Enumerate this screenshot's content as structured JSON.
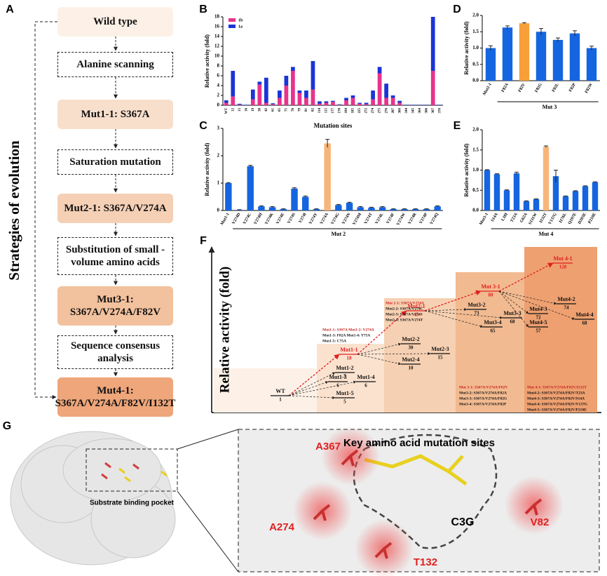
{
  "panel_labels": [
    "A",
    "B",
    "C",
    "D",
    "E",
    "F",
    "G"
  ],
  "panel_a": {
    "axis_label": "Strategies of evolution",
    "steps": [
      "Wild type",
      "Alanine scanning",
      "Mut1-1: S367A",
      "Saturation mutation",
      "Mut2-1: S367A/V274A",
      "Substitution of small - volume amino acids",
      "Mut3-1: S367A/V274A/F82V",
      "Sequence consensus analysis",
      "Mut4-1: S367A/V274A/F82V/I132T"
    ]
  },
  "chart_data": [
    {
      "type": "bar",
      "stacked": true,
      "ylabel": "Relative activity (fold)",
      "xlabel": "Mutation sites",
      "categories": [
        "WT",
        "12",
        "13",
        "16",
        "19",
        "38",
        "42",
        "61",
        "65",
        "75",
        "76",
        "79",
        "81",
        "82",
        "114",
        "115",
        "177",
        "178",
        "184",
        "185",
        "225",
        "272",
        "274",
        "275",
        "276",
        "287",
        "300",
        "344",
        "345",
        "364",
        "366",
        "367",
        "370"
      ],
      "series": [
        {
          "name": "1b",
          "color": "#e8338c",
          "values": [
            0.5,
            1.8,
            0.1,
            0,
            1.2,
            4.2,
            0.5,
            0.2,
            1.5,
            4,
            7,
            2.5,
            1.5,
            3.2,
            0.3,
            0.5,
            0.7,
            0.1,
            1,
            1.5,
            0.3,
            0.2,
            1.2,
            6.5,
            1.5,
            1.5,
            0.5,
            0,
            0,
            0,
            0,
            7,
            0
          ]
        },
        {
          "name": "1a",
          "color": "#1a35d6",
          "values": [
            0.5,
            5.2,
            0.2,
            0.1,
            2,
            0.6,
            5.1,
            0.2,
            1.5,
            2,
            0.8,
            0.5,
            1.5,
            5.8,
            0.5,
            0.3,
            0.2,
            0.1,
            0.5,
            0.5,
            0.2,
            0.3,
            1.8,
            1.3,
            2.9,
            0.5,
            0.4,
            0.1,
            0.1,
            0.1,
            0.1,
            11,
            0.1
          ]
        }
      ],
      "ylim": [
        0,
        18
      ],
      "yticks": [
        0,
        2,
        4,
        6,
        8,
        10,
        12,
        14,
        16,
        18
      ],
      "legend": "top-left"
    },
    {
      "type": "bar",
      "ylabel": "Relative activity (fold)",
      "group_label": "Mut 2",
      "categories": [
        "Mut1-1",
        "V274D",
        "V274C",
        "V274H",
        "V274K",
        "V274E",
        "V274S",
        "V274I",
        "V274Y",
        "V274A",
        "V274G",
        "V274N",
        "V274M",
        "V274T",
        "V274L",
        "V274F",
        "V274W",
        "V274R",
        "V274P",
        "V274Q"
      ],
      "values": [
        1.0,
        0.02,
        1.62,
        0.15,
        0.12,
        0.05,
        0.8,
        0.5,
        0.05,
        2.45,
        0.2,
        0.28,
        0.12,
        0.1,
        0.12,
        0.05,
        0.05,
        0.05,
        0.05,
        0.15
      ],
      "errors": [
        0.02,
        0.01,
        0.03,
        0.02,
        0.02,
        0.01,
        0.03,
        0.03,
        0.01,
        0.15,
        0.02,
        0.02,
        0.02,
        0.02,
        0.02,
        0.01,
        0.01,
        0.01,
        0.01,
        0.02
      ],
      "colors": [
        "#1565e0",
        "#1565e0",
        "#1565e0",
        "#1565e0",
        "#1565e0",
        "#1565e0",
        "#1565e0",
        "#1565e0",
        "#1565e0",
        "#f7b57a",
        "#1565e0",
        "#1565e0",
        "#1565e0",
        "#1565e0",
        "#1565e0",
        "#1565e0",
        "#1565e0",
        "#1565e0",
        "#1565e0",
        "#1565e0"
      ],
      "ylim": [
        0,
        3
      ],
      "yticks": [
        0,
        1,
        2,
        3
      ]
    },
    {
      "type": "bar",
      "ylabel": "Relative activity (fold)",
      "group_label": "Mut 3",
      "categories": [
        "Mut2-1",
        "F82A",
        "F82V",
        "F82G",
        "F82L",
        "F82P",
        "F82W"
      ],
      "values": [
        1.0,
        1.63,
        1.76,
        1.5,
        1.25,
        1.45,
        1.0
      ],
      "errors": [
        0.07,
        0.05,
        0.02,
        0.1,
        0.06,
        0.08,
        0.06
      ],
      "colors": [
        "#1565e0",
        "#1565e0",
        "#f7a03a",
        "#1565e0",
        "#1565e0",
        "#1565e0",
        "#1565e0"
      ],
      "ylim": [
        0,
        2
      ],
      "yticks": [
        {
          "value": 0,
          "label": "0.0"
        },
        {
          "value": 0.5,
          "label": "0.5"
        },
        {
          "value": 1,
          "label": "1.0"
        },
        {
          "value": 1.5,
          "label": "1.5"
        },
        {
          "value": 2,
          "label": "2.0"
        }
      ]
    },
    {
      "type": "bar",
      "ylabel": "Relative activity (fold)",
      "group_label": "Mut 4",
      "categories": [
        "Mut3-1",
        "S14A",
        "L18I",
        "T23A",
        "G62A",
        "S131W",
        "I132T",
        "V137G",
        "I176L",
        "Q197E",
        "D203E",
        "P210E"
      ],
      "values": [
        1.0,
        0.9,
        0.5,
        0.92,
        0.23,
        0.28,
        1.58,
        0.85,
        0.35,
        0.48,
        0.6,
        0.7
      ],
      "errors": [
        0.01,
        0.01,
        0.01,
        0.03,
        0.01,
        0.01,
        0.02,
        0.15,
        0.01,
        0.01,
        0.01,
        0.01
      ],
      "colors": [
        "#1565e0",
        "#1565e0",
        "#1565e0",
        "#1565e0",
        "#1565e0",
        "#1565e0",
        "#f7b57a",
        "#1565e0",
        "#1565e0",
        "#1565e0",
        "#1565e0",
        "#1565e0"
      ],
      "ylim": [
        0,
        2
      ],
      "yticks": [
        {
          "value": 0,
          "label": "0.0"
        },
        {
          "value": 0.5,
          "label": "0.5"
        },
        {
          "value": 1,
          "label": "1.0"
        },
        {
          "value": 1.5,
          "label": "1.5"
        },
        {
          "value": 2,
          "label": "2.0"
        }
      ]
    }
  ],
  "panel_f": {
    "ylabel": "Relative activity (fold)",
    "nodes": [
      {
        "name": "WT",
        "value": "1"
      },
      {
        "name": "Mut1-1",
        "value": "18"
      },
      {
        "name": "Mut1-2",
        "value": "7"
      },
      {
        "name": "Mut1-3",
        "value": "6"
      },
      {
        "name": "Mut1-4",
        "value": "6"
      },
      {
        "name": "Mut1-5",
        "value": "5"
      },
      {
        "name": "Mut2-1",
        "value": "45"
      },
      {
        "name": "Mut2-2",
        "value": "30"
      },
      {
        "name": "Mut2-3",
        "value": "15"
      },
      {
        "name": "Mut2-4",
        "value": "10"
      },
      {
        "name": "Mut 3-1",
        "value": "80"
      },
      {
        "name": "Mut3-2",
        "value": "73"
      },
      {
        "name": "Mut3-3",
        "value": "68"
      },
      {
        "name": "Mut3-4",
        "value": "65"
      },
      {
        "name": "Mut 4-1",
        "value": "128"
      },
      {
        "name": "Mut4-2",
        "value": "74"
      },
      {
        "name": "Mut4-3",
        "value": "72"
      },
      {
        "name": "Mut4-4",
        "value": "68"
      },
      {
        "name": "Mut4-5",
        "value": "57"
      }
    ],
    "notes": [
      [
        "Mut1-1: S367A   Mut1-2: V274A",
        "Mut1-3: F82A     Mut1-4: Y75A",
        "Mut1-5: C75A"
      ],
      [
        "Mut 2-1: S367A/V274A",
        "Mut2-2: S367A/V274C",
        "Mut2-3: S367A/V274S",
        "Mut2-4: S367A/V274T"
      ],
      [
        "Mut 3-1: S367A/V274A/F82V",
        "Mut3-2: S367A/V274A/F82A",
        "Mut3-3: S367A/V274A/F82G",
        "Mut3-4: S367A/V274A/F82P"
      ],
      [
        "Mut 4-1: S367A/V274A/F82V/I132T",
        "Mut4-2: S367A/V274A/F82V/T23A",
        "Mut4-3: S367A/V274A/F82V/S14A",
        "Mut4-4: S367A/V274A/F82V/V137G",
        "Mut4-5: S367A/V274A/F82V/P210E"
      ]
    ]
  },
  "panel_g": {
    "pocket_label": "Substrate binding pocket",
    "title": "Key amino acid mutation sites",
    "residues": [
      "A367",
      "A274",
      "T132",
      "V82"
    ],
    "ligand": "C3G"
  }
}
